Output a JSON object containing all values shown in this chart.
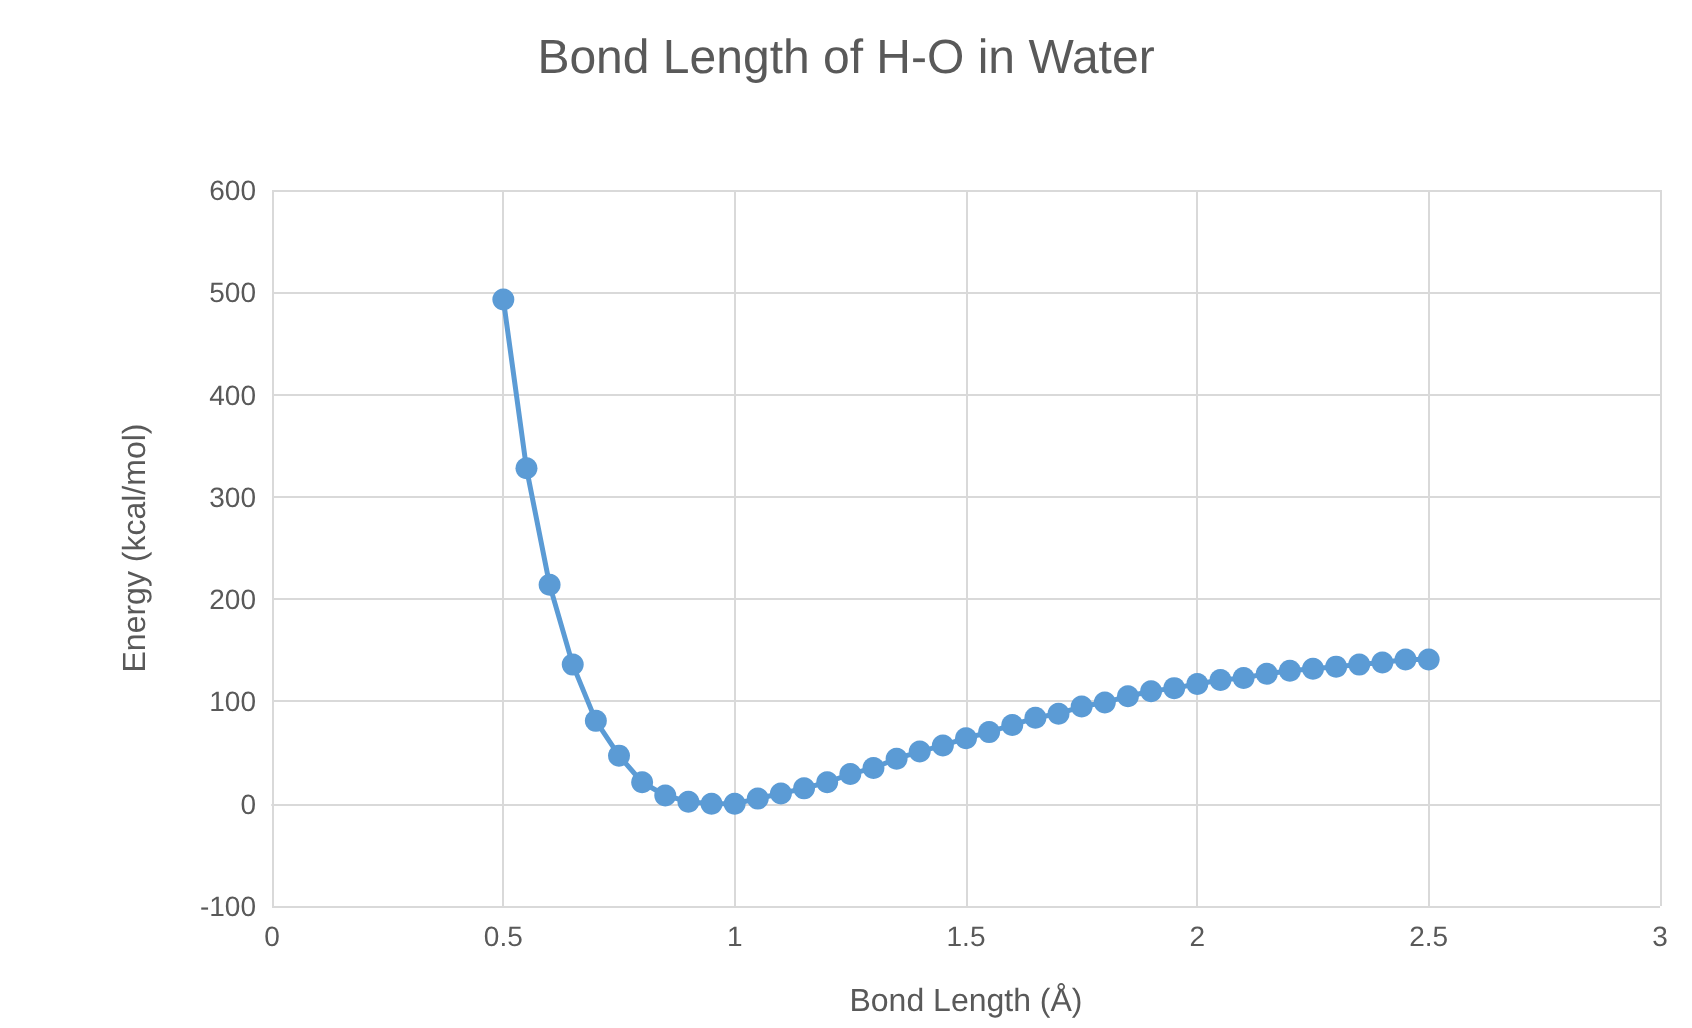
{
  "chart_data": {
    "type": "line",
    "title": "Bond Length of H-O in Water",
    "xlabel": "Bond Length (Å)",
    "ylabel": "Energy (kcal/mol)",
    "x": [
      0.5,
      0.55,
      0.6,
      0.65,
      0.7,
      0.75,
      0.8,
      0.85,
      0.9,
      0.95,
      1.0,
      1.05,
      1.1,
      1.15,
      1.2,
      1.25,
      1.3,
      1.35,
      1.4,
      1.45,
      1.5,
      1.55,
      1.6,
      1.65,
      1.7,
      1.75,
      1.8,
      1.85,
      1.9,
      1.95,
      2.0,
      2.05,
      2.1,
      2.15,
      2.2,
      2.25,
      2.3,
      2.35,
      2.4,
      2.45,
      2.5
    ],
    "series": [
      {
        "color": "#5b9bd5",
        "values": [
          493,
          328,
          214,
          136,
          81,
          47,
          21,
          8,
          2,
          0,
          0,
          5,
          10,
          15,
          21,
          29,
          35,
          44,
          51,
          57,
          64,
          70,
          77,
          84,
          88,
          95,
          99,
          105,
          110,
          113,
          117,
          121,
          123,
          127,
          130,
          132,
          134,
          136,
          138,
          141,
          141
        ]
      }
    ],
    "xlim": [
      0,
      3
    ],
    "xticks": [
      0,
      0.5,
      1,
      1.5,
      2,
      2.5,
      3
    ],
    "ylim": [
      -100,
      600
    ],
    "yticks": [
      -100,
      0,
      100,
      200,
      300,
      400,
      500,
      600
    ],
    "grid": true,
    "marker": "circle",
    "line_style": "solid"
  }
}
